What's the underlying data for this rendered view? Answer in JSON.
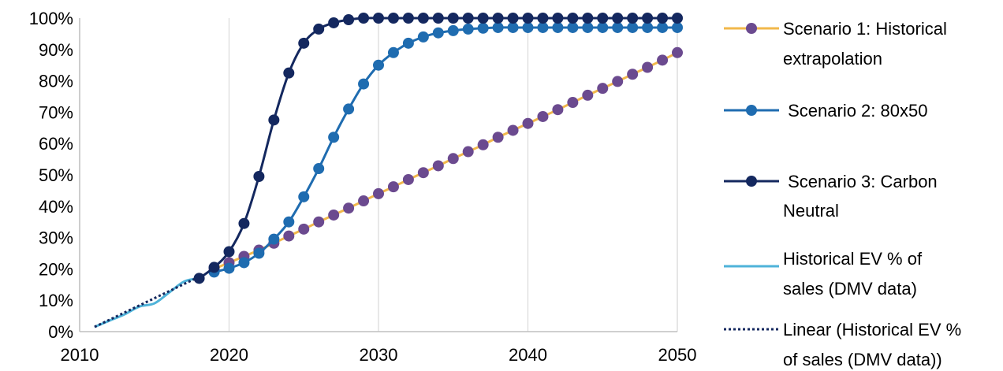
{
  "chart_data": {
    "type": "line",
    "xlim": [
      2010,
      2050
    ],
    "ylim": [
      0,
      100
    ],
    "x_ticks": [
      {
        "value": 2010,
        "label": "2010"
      },
      {
        "value": 2020,
        "label": "2020"
      },
      {
        "value": 2030,
        "label": "2030"
      },
      {
        "value": 2040,
        "label": "2040"
      },
      {
        "value": 2050,
        "label": "2050"
      }
    ],
    "y_ticks": [
      {
        "value": 0,
        "label": "0%"
      },
      {
        "value": 10,
        "label": "10%"
      },
      {
        "value": 20,
        "label": "20%"
      },
      {
        "value": 30,
        "label": "30%"
      },
      {
        "value": 40,
        "label": "40%"
      },
      {
        "value": 50,
        "label": "50%"
      },
      {
        "value": 60,
        "label": "60%"
      },
      {
        "value": 70,
        "label": "70%"
      },
      {
        "value": 80,
        "label": "80%"
      },
      {
        "value": 90,
        "label": "90%"
      },
      {
        "value": 100,
        "label": "100%"
      }
    ],
    "grid": "vertical",
    "legend_position": "right",
    "series": [
      {
        "name_lines": [
          "Scenario 1: Historical",
          "extrapolation"
        ],
        "line_color": "#F2B84B",
        "marker_color": "#6B4A8F",
        "style": "line-markers",
        "x": [
          2019,
          2020,
          2021,
          2022,
          2023,
          2024,
          2025,
          2026,
          2027,
          2028,
          2029,
          2030,
          2031,
          2032,
          2033,
          2034,
          2035,
          2036,
          2037,
          2038,
          2039,
          2040,
          2041,
          2042,
          2043,
          2044,
          2045,
          2046,
          2047,
          2048,
          2049,
          2050
        ],
        "y": [
          20,
          22,
          24,
          26,
          28.2,
          30.5,
          32.7,
          35,
          37.2,
          39.4,
          41.7,
          44,
          46.2,
          48.5,
          50.7,
          52.9,
          55.2,
          57.4,
          59.6,
          62,
          64.2,
          66.4,
          68.6,
          70.8,
          73.1,
          75.4,
          77.6,
          79.8,
          82.1,
          84.3,
          86.6,
          89
        ]
      },
      {
        "name_lines": [
          " Scenario 2: 80x50"
        ],
        "line_color": "#1F6CB0",
        "marker_color": "#1F6CB0",
        "style": "line-markers",
        "x": [
          2019,
          2020,
          2021,
          2022,
          2023,
          2024,
          2025,
          2026,
          2027,
          2028,
          2029,
          2030,
          2031,
          2032,
          2033,
          2034,
          2035,
          2036,
          2037,
          2038,
          2039,
          2040,
          2041,
          2042,
          2043,
          2044,
          2045,
          2046,
          2047,
          2048,
          2049,
          2050
        ],
        "y": [
          19,
          20.2,
          22,
          25,
          29.5,
          35,
          43,
          52,
          62,
          71,
          79,
          85,
          89,
          92,
          94,
          95.3,
          96,
          96.5,
          96.8,
          97,
          97,
          97,
          97,
          97,
          97,
          97,
          97,
          97,
          97,
          97,
          97,
          97
        ]
      },
      {
        "name_lines": [
          " Scenario 3: Carbon",
          "Neutral"
        ],
        "line_color": "#14285F",
        "marker_color": "#14285F",
        "style": "line-markers",
        "x": [
          2018,
          2019,
          2020,
          2021,
          2022,
          2023,
          2024,
          2025,
          2026,
          2027,
          2028,
          2029,
          2030,
          2031,
          2032,
          2033,
          2034,
          2035,
          2036,
          2037,
          2038,
          2039,
          2040,
          2041,
          2042,
          2043,
          2044,
          2045,
          2046,
          2047,
          2048,
          2049,
          2050
        ],
        "y": [
          17,
          20.5,
          25.5,
          34.5,
          49.5,
          67.5,
          82.5,
          92,
          96.5,
          98.5,
          99.5,
          100,
          100,
          100,
          100,
          100,
          100,
          100,
          100,
          100,
          100,
          100,
          100,
          100,
          100,
          100,
          100,
          100,
          100,
          100,
          100,
          100,
          100
        ]
      },
      {
        "name_lines": [
          "Historical EV % of",
          "sales (DMV data)"
        ],
        "line_color": "#4FB3D9",
        "style": "line",
        "x": [
          2011,
          2012,
          2013,
          2014,
          2015,
          2016,
          2017,
          2018
        ],
        "y": [
          1.5,
          3.5,
          5.5,
          8,
          9,
          12.5,
          16,
          17
        ]
      },
      {
        "name_lines": [
          "Linear (Historical EV %",
          "of sales (DMV data))"
        ],
        "line_color": "#14285F",
        "style": "dotted",
        "x": [
          2011,
          2018
        ],
        "y": [
          1.5,
          17.5
        ]
      }
    ]
  }
}
